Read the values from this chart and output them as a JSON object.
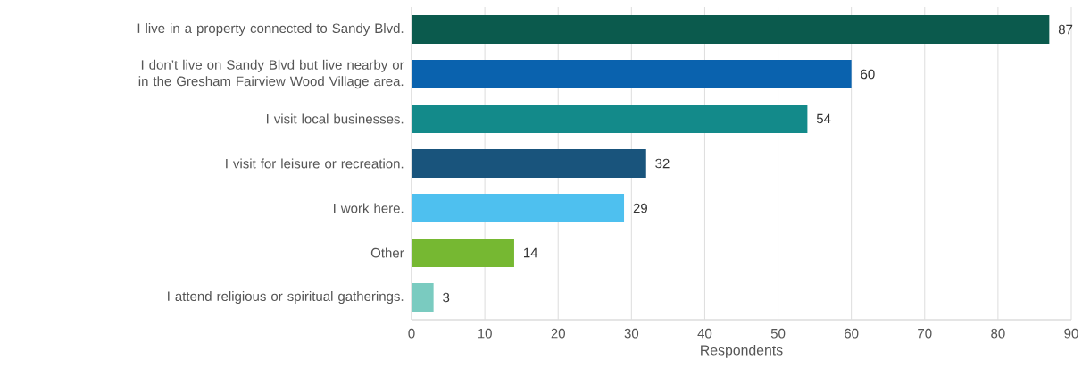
{
  "chart_data": {
    "type": "bar",
    "orientation": "horizontal",
    "xlabel": "Respondents",
    "categories": [
      "I live in a property connected to Sandy Blvd.",
      "I don’t live on Sandy Blvd but live nearby or in the Gresham Fairview Wood Village area.",
      "I visit local businesses.",
      "I visit for leisure or recreation.",
      "I work here.",
      "Other",
      "I attend religious or spiritual gatherings."
    ],
    "values": [
      87,
      60,
      54,
      32,
      29,
      14,
      3
    ],
    "colors": [
      "#0b5a4d",
      "#0a62ae",
      "#138a8a",
      "#19547c",
      "#4ec0ef",
      "#76b832",
      "#7acbc0"
    ],
    "xlim": [
      0,
      90
    ],
    "xticks": [
      0,
      10,
      20,
      30,
      40,
      50,
      60,
      70,
      80,
      90
    ],
    "grid": "x",
    "data_labels": true
  }
}
